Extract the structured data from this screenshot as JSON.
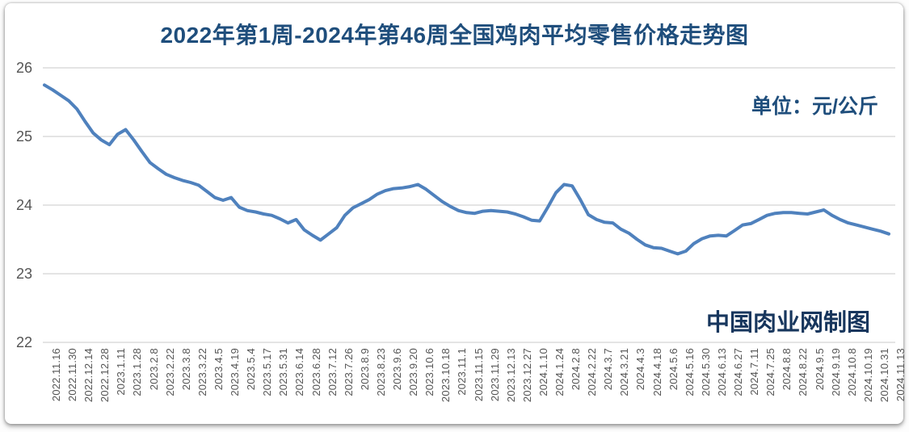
{
  "page": {
    "title": "2022年第1周-2024年第46周全国鸡肉平均零售价格走势图",
    "unit_label": "单位：元/公斤",
    "watermark": "中国肉业网制图"
  },
  "colors": {
    "title": "#1f4e7c",
    "unit_label": "#1f4e7c",
    "watermark": "#17365d",
    "line": "#4f81bd",
    "gridline": "#d4d4d4",
    "axis_text": "#555555"
  },
  "chart_data": {
    "type": "line",
    "title": "2022年第1周-2024年第46周全国鸡肉平均零售价格走势图",
    "ylabel": "元/公斤",
    "ylim": [
      22,
      26
    ],
    "y_ticks": [
      26,
      25,
      24,
      23,
      22
    ],
    "grid": "horizontal",
    "legend": "none",
    "points_per_x_label": 2,
    "x_tick_labels": [
      "2022.11.16",
      "2022.11.30",
      "2022.12.14",
      "2022.12.28",
      "2023.1.11",
      "2023.1.28",
      "2023.2.8",
      "2023.2.22",
      "2023.3.8",
      "2023.3.22",
      "2023.4.5",
      "2023.4.19",
      "2023.5.4",
      "2023.5.17",
      "2023.5.31",
      "2023.6.14",
      "2023.6.28",
      "2023.7.12",
      "2023.7.26",
      "2023.8.9",
      "2023.8.23",
      "2023.9.6",
      "2023.9.20",
      "2023.10.6",
      "2023.10.18",
      "2023.11.1",
      "2023.11.15",
      "2023.11.29",
      "2023.12.13",
      "2023.12.27",
      "2024.1.10",
      "2024.1.24",
      "2024.2.8",
      "2024.2.22",
      "2024.3.7",
      "2024.3.21",
      "2024.4.3",
      "2024.4.18",
      "2024.5.6",
      "2024.5.16",
      "2024.5.30",
      "2024.6.13",
      "2024.6.27",
      "2024.7.11",
      "2024.7.25",
      "2024.8.8",
      "2024.8.22",
      "2024.9.5",
      "2024.9.19",
      "2024.10.8",
      "2024.10.19",
      "2024.10.31",
      "2024.11.13"
    ],
    "series": [
      {
        "values": [
          25.75,
          25.68,
          25.6,
          25.52,
          25.4,
          25.22,
          25.05,
          24.95,
          24.88,
          25.03,
          25.1,
          24.95,
          24.78,
          24.62,
          24.53,
          24.45,
          24.4,
          24.36,
          24.33,
          24.29,
          24.2,
          24.11,
          24.07,
          24.11,
          23.97,
          23.92,
          23.9,
          23.87,
          23.85,
          23.8,
          23.74,
          23.79,
          23.64,
          23.56,
          23.49,
          23.58,
          23.67,
          23.85,
          23.96,
          24.02,
          24.08,
          24.16,
          24.21,
          24.24,
          24.25,
          24.27,
          24.3,
          24.23,
          24.14,
          24.05,
          23.98,
          23.92,
          23.89,
          23.88,
          23.91,
          23.92,
          23.91,
          23.9,
          23.87,
          23.83,
          23.78,
          23.77,
          23.97,
          24.18,
          24.3,
          24.28,
          24.08,
          23.86,
          23.79,
          23.75,
          23.74,
          23.65,
          23.59,
          23.5,
          23.42,
          23.38,
          23.37,
          23.33,
          23.29,
          23.33,
          23.44,
          23.51,
          23.55,
          23.56,
          23.55,
          23.63,
          23.71,
          23.73,
          23.79,
          23.85,
          23.88,
          23.89,
          23.89,
          23.88,
          23.87,
          23.9,
          23.93,
          23.85,
          23.79,
          23.74,
          23.71,
          23.68,
          23.65,
          23.62,
          23.58
        ]
      }
    ]
  }
}
